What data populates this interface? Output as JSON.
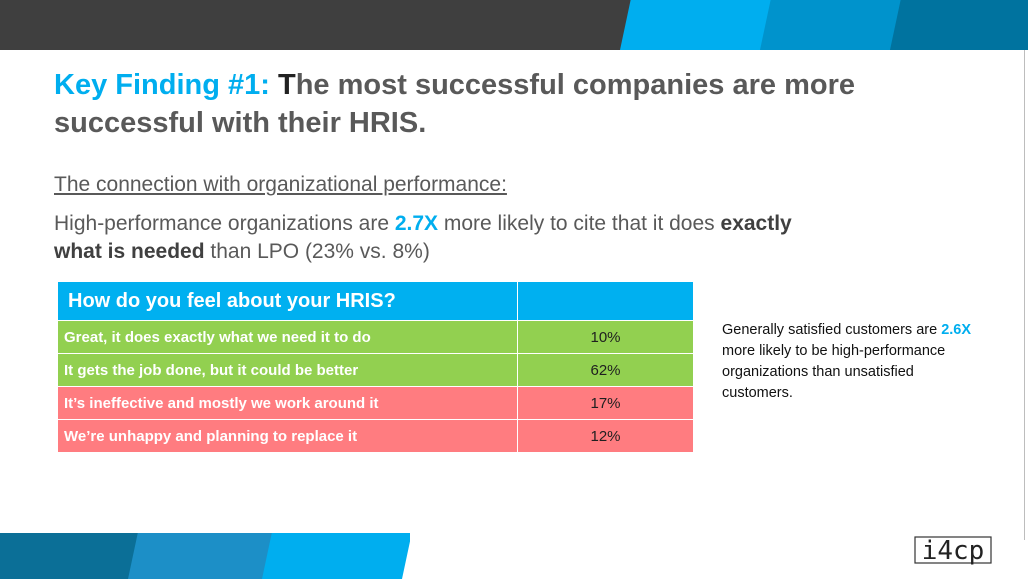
{
  "header": {
    "title_accent": "Key Finding #1:",
    "title_first_letter": "T",
    "title_rest": "he most successful companies are more successful with their HRIS."
  },
  "subtitle": "The connection with organizational performance:",
  "stat": {
    "part1": "High-performance organizations are ",
    "highlight": "2.7X",
    "part2": " more likely to cite that it does ",
    "bold": "exactly what is needed",
    "part3": " than LPO (23% vs. 8%)"
  },
  "table": {
    "header": "How do you feel about your HRIS?",
    "rows": [
      {
        "label": "Great, it does exactly what we need it to do",
        "value": "10%",
        "status": "positive"
      },
      {
        "label": "It gets the job done, but it could be better",
        "value": "62%",
        "status": "positive"
      },
      {
        "label": "It’s ineffective and mostly we work around it",
        "value": "17%",
        "status": "negative"
      },
      {
        "label": "We’re unhappy and planning to replace it",
        "value": "12%",
        "status": "negative"
      }
    ]
  },
  "side_note": {
    "part1": "Generally satisfied customers are ",
    "highlight": "2.6X",
    "part2": " more likely to be high-performance organizations than unsatisfied customers."
  },
  "logo": {
    "text": "i4cp"
  },
  "colors": {
    "accent": "#00aeef",
    "positive": "#92d050",
    "negative": "#ff7c80",
    "dark_band": "#3f3f3f"
  }
}
